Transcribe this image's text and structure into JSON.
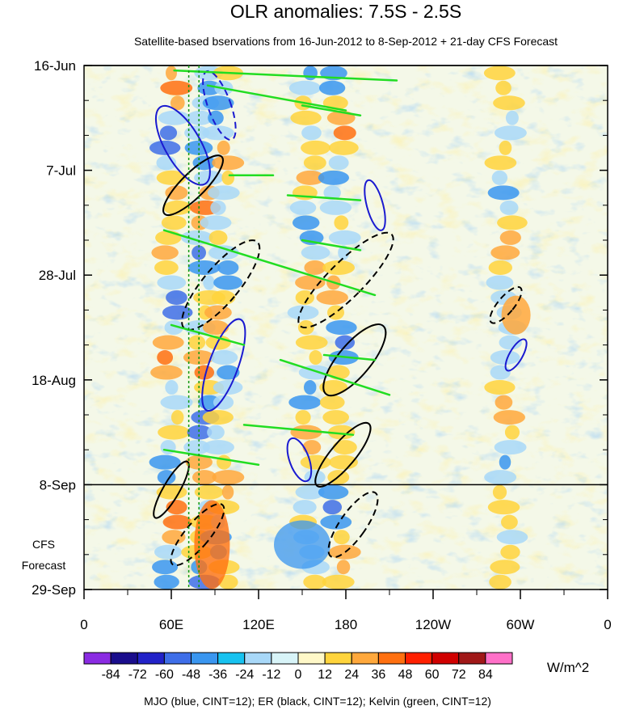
{
  "chart_data": {
    "type": "heatmap",
    "title": "OLR anomalies: 7.5S - 2.5S",
    "subtitle": "Satellite-based bservations from 16-Jun-2012 to 8-Sep-2012 + 21-day CFS Forecast",
    "x_tick_labels": [
      "0",
      "60E",
      "120E",
      "180",
      "120W",
      "60W",
      "0"
    ],
    "x_ticks_lon": [
      0,
      60,
      120,
      180,
      240,
      300,
      360
    ],
    "xlim": [
      0,
      360
    ],
    "y_tick_labels": [
      "16-Jun",
      "7-Jul",
      "28-Jul",
      "18-Aug",
      "8-Sep",
      "29-Sep"
    ],
    "y_ticks_day": [
      0,
      21,
      42,
      63,
      84,
      105
    ],
    "ylim_days": [
      0,
      105
    ],
    "observation_end_day": 84,
    "forecast_label": [
      "CFS",
      "Forecast"
    ],
    "colorbar": {
      "units": "W/m^2",
      "labels": [
        "-84",
        "-72",
        "-60",
        "-48",
        "-36",
        "-24",
        "-12",
        "0",
        "12",
        "24",
        "36",
        "48",
        "60",
        "72",
        "84"
      ],
      "colors": [
        "#8a2be2",
        "#1a0d8c",
        "#2222c8",
        "#3e6ee8",
        "#3a96f0",
        "#17c2f0",
        "#a8d8f8",
        "#d8f4f8",
        "#fff8c8",
        "#ffd43c",
        "#ffa83c",
        "#ff7010",
        "#ff2000",
        "#d00000",
        "#a01818",
        "#ff70c8"
      ]
    },
    "bands": [
      {
        "lon": 60,
        "intensity": 0.85
      },
      {
        "lon": 82,
        "intensity": 0.9
      },
      {
        "lon": 95,
        "intensity": 0.55
      },
      {
        "lon": 155,
        "intensity": 0.6
      },
      {
        "lon": 175,
        "intensity": 0.65
      },
      {
        "lon": 290,
        "intensity": 0.45
      }
    ],
    "contours": {
      "mjo": {
        "color": "#1a1ad0",
        "cint": 12
      },
      "er": {
        "color": "#000000",
        "cint": 12
      },
      "kelvin": {
        "color": "#22dd22",
        "cint": 12
      }
    },
    "footnote": "MJO (blue, CINT=12); ER (black, CINT=12); Kelvin (green, CINT=12)"
  }
}
